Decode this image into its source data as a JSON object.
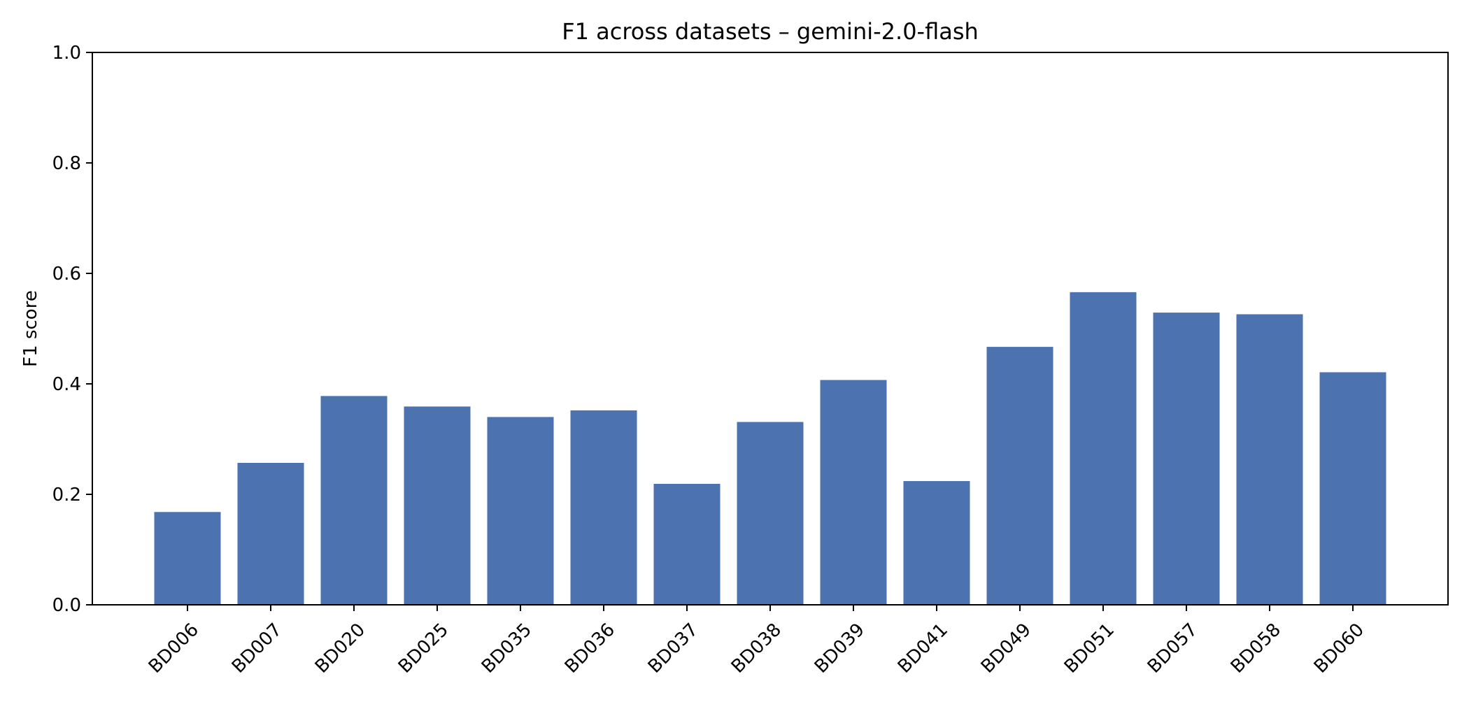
{
  "chart_data": {
    "type": "bar",
    "title": "F1 across datasets – gemini-2.0-flash",
    "xlabel": "",
    "ylabel": "F1 score",
    "ylim": [
      0,
      1.0
    ],
    "yticks": [
      "0.0",
      "0.2",
      "0.4",
      "0.6",
      "0.8",
      "1.0"
    ],
    "categories": [
      "BD006",
      "BD007",
      "BD020",
      "BD025",
      "BD035",
      "BD036",
      "BD037",
      "BD038",
      "BD039",
      "BD041",
      "BD049",
      "BD051",
      "BD057",
      "BD058",
      "BD060"
    ],
    "values": [
      0.168,
      0.257,
      0.378,
      0.359,
      0.34,
      0.352,
      0.219,
      0.331,
      0.407,
      0.224,
      0.467,
      0.566,
      0.529,
      0.526,
      0.421
    ],
    "grid": false,
    "legend": "none",
    "bar_color": "#4c72b0"
  }
}
